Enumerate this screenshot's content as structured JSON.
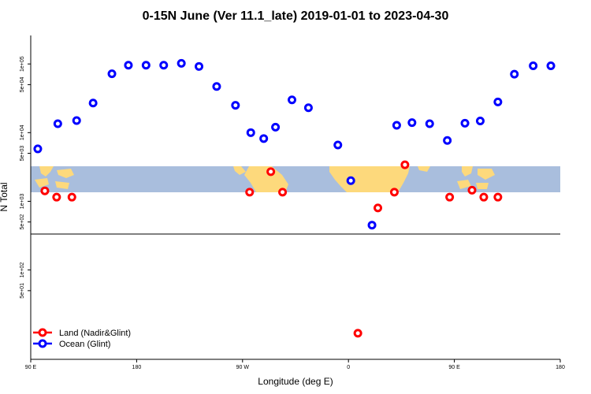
{
  "chart_data": {
    "type": "scatter",
    "title": "0-15N June (Ver 11.1_late)   2019-01-01 to 2023-04-30",
    "xlabel": "Longitude (deg E)",
    "ylabel": "N Total",
    "x_ticks": [
      {
        "value": 0,
        "label": "90 E"
      },
      {
        "value": 90,
        "label": "180"
      },
      {
        "value": 180,
        "label": "90 W"
      },
      {
        "value": 270,
        "label": "0"
      },
      {
        "value": 360,
        "label": "90 E"
      },
      {
        "value": 450,
        "label": "180"
      }
    ],
    "xlim": [
      0,
      450
    ],
    "y_scale": "log",
    "ylim": [
      5,
      260000
    ],
    "y_ticks": [
      {
        "value": 50,
        "label": "5e+01"
      },
      {
        "value": 100,
        "label": "1e+02"
      },
      {
        "value": 500,
        "label": "5e+02"
      },
      {
        "value": 1000,
        "label": "1e+03"
      },
      {
        "value": 5000,
        "label": "5e+03"
      },
      {
        "value": 10000,
        "label": "1e+04"
      },
      {
        "value": 50000,
        "label": "5e+04"
      },
      {
        "value": 100000,
        "label": "1e+05"
      }
    ],
    "grid": false,
    "legend_position": "bottom-left",
    "series": [
      {
        "name": "Land (Nadir&Glint)",
        "color": "#ff0000",
        "x": [
          12,
          22,
          35,
          186,
          204,
          214,
          278,
          295,
          309,
          318
        ],
        "y": [
          1420,
          1150,
          1150,
          1360,
          2700,
          1360,
          12,
          800,
          1360,
          3400
        ],
        "x_more": [
          356,
          375,
          385,
          397
        ],
        "y_more": [
          1150,
          1450,
          1150,
          1150
        ]
      },
      {
        "name": "Ocean (Glint)",
        "color": "#0000ff",
        "x": [
          6,
          23,
          39,
          53,
          69,
          83,
          98,
          113,
          128,
          143,
          158,
          174,
          187,
          198,
          208,
          222,
          236,
          261,
          272,
          290,
          311,
          324,
          339,
          354,
          369,
          382,
          397,
          411,
          427,
          442
        ],
        "y": [
          5800,
          13500,
          15000,
          27000,
          72000,
          96000,
          96000,
          96000,
          102000,
          92000,
          47000,
          25000,
          10000,
          8200,
          12000,
          30000,
          23000,
          6600,
          2000,
          450,
          12800,
          14000,
          13500,
          7700,
          13700,
          14800,
          28000,
          71000,
          94000,
          94000
        ]
      }
    ]
  }
}
